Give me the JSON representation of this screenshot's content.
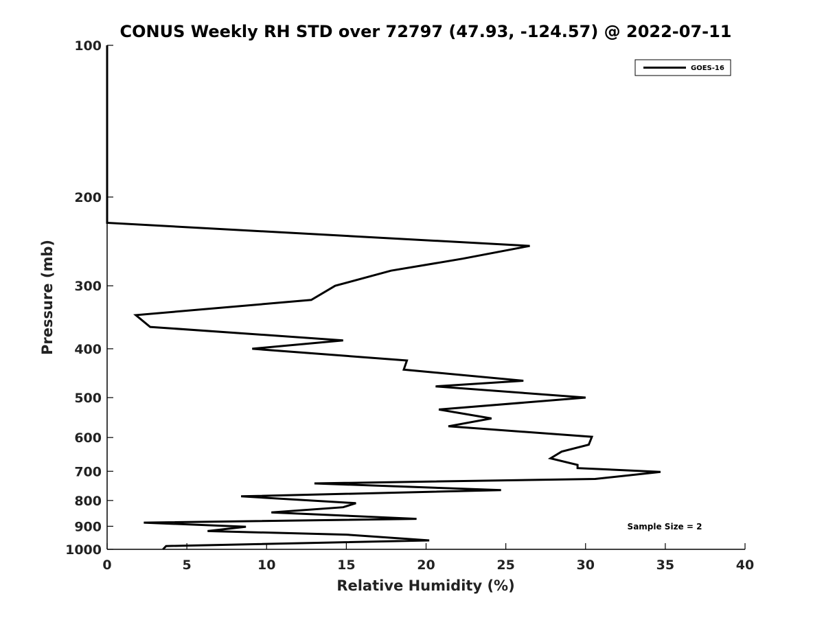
{
  "chart_data": {
    "type": "line",
    "title": "CONUS Weekly RH STD over 72797 (47.93, -124.57) @ 2022-07-11",
    "xlabel": "Relative Humidity (%)",
    "ylabel": "Pressure (mb)",
    "xlim": [
      0,
      40
    ],
    "ylim": [
      1000,
      100
    ],
    "y_scale": "log",
    "y_reversed": true,
    "xticks": [
      0,
      5,
      10,
      15,
      20,
      25,
      30,
      35,
      40
    ],
    "yticks": [
      100,
      200,
      300,
      400,
      500,
      600,
      700,
      800,
      900,
      1000
    ],
    "grid": false,
    "legend_position": "top-right",
    "annotation": "Sample Size = 2",
    "series": [
      {
        "name": "GOES-16",
        "color": "#000000",
        "points": [
          [
            0.0,
            100
          ],
          [
            0.0,
            150
          ],
          [
            0.0,
            200
          ],
          [
            0.0,
            225
          ],
          [
            26.5,
            250
          ],
          [
            22.3,
            265
          ],
          [
            17.8,
            280
          ],
          [
            14.3,
            300
          ],
          [
            12.8,
            320
          ],
          [
            1.8,
            343
          ],
          [
            2.7,
            362
          ],
          [
            14.8,
            385
          ],
          [
            9.1,
            400
          ],
          [
            18.8,
            422
          ],
          [
            18.6,
            440
          ],
          [
            26.1,
            463
          ],
          [
            20.6,
            475
          ],
          [
            30.0,
            500
          ],
          [
            20.8,
            528
          ],
          [
            24.1,
            550
          ],
          [
            21.4,
            570
          ],
          [
            30.4,
            598
          ],
          [
            30.2,
            620
          ],
          [
            28.5,
            640
          ],
          [
            27.8,
            660
          ],
          [
            29.5,
            680
          ],
          [
            29.5,
            690
          ],
          [
            34.7,
            702
          ],
          [
            30.6,
            725
          ],
          [
            13.0,
            740
          ],
          [
            24.7,
            763
          ],
          [
            8.4,
            785
          ],
          [
            15.6,
            810
          ],
          [
            14.8,
            825
          ],
          [
            10.3,
            845
          ],
          [
            19.4,
            870
          ],
          [
            2.3,
            885
          ],
          [
            8.7,
            902
          ],
          [
            6.3,
            920
          ],
          [
            15.0,
            935
          ],
          [
            20.2,
            960
          ],
          [
            3.7,
            985
          ],
          [
            3.5,
            1000
          ]
        ]
      }
    ]
  }
}
